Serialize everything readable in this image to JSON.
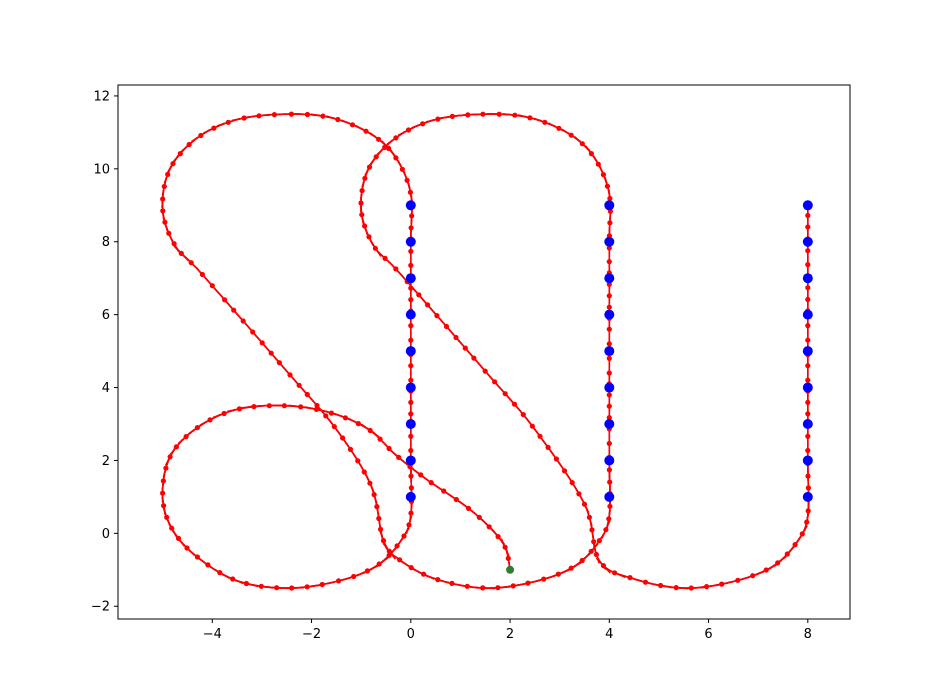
{
  "chart_data": {
    "type": "line",
    "title": "",
    "xlabel": "",
    "ylabel": "",
    "xlim": [
      -5.9,
      8.85
    ],
    "ylim": [
      -2.35,
      12.3
    ],
    "xticks": [
      -4,
      -2,
      0,
      2,
      4,
      6,
      8
    ],
    "yticks": [
      -2,
      0,
      2,
      4,
      6,
      8,
      10,
      12
    ],
    "xtick_labels": [
      "−4",
      "−2",
      "0",
      "2",
      "4",
      "6",
      "8"
    ],
    "ytick_labels": [
      "−2",
      "0",
      "2",
      "4",
      "6",
      "8",
      "10",
      "12"
    ],
    "grid": false,
    "legend": "none",
    "colors": {
      "path": "#0000ff",
      "pose": "#ff0000",
      "waypoint": "#0000ff",
      "start": "#2e7d32"
    },
    "waypoints": [
      {
        "x": 0,
        "y": 1
      },
      {
        "x": 0,
        "y": 2
      },
      {
        "x": 0,
        "y": 3
      },
      {
        "x": 0,
        "y": 4
      },
      {
        "x": 0,
        "y": 5
      },
      {
        "x": 0,
        "y": 6
      },
      {
        "x": 0,
        "y": 7
      },
      {
        "x": 0,
        "y": 8
      },
      {
        "x": 0,
        "y": 9
      },
      {
        "x": 4,
        "y": 1
      },
      {
        "x": 4,
        "y": 2
      },
      {
        "x": 4,
        "y": 3
      },
      {
        "x": 4,
        "y": 4
      },
      {
        "x": 4,
        "y": 5
      },
      {
        "x": 4,
        "y": 6
      },
      {
        "x": 4,
        "y": 7
      },
      {
        "x": 4,
        "y": 8
      },
      {
        "x": 4,
        "y": 9
      },
      {
        "x": 8,
        "y": 1
      },
      {
        "x": 8,
        "y": 2
      },
      {
        "x": 8,
        "y": 3
      },
      {
        "x": 8,
        "y": 4
      },
      {
        "x": 8,
        "y": 5
      },
      {
        "x": 8,
        "y": 6
      },
      {
        "x": 8,
        "y": 7
      },
      {
        "x": 8,
        "y": 8
      },
      {
        "x": 8,
        "y": 9
      }
    ],
    "start_point": {
      "x": 2,
      "y": -1
    },
    "path": [
      {
        "x": 2.0,
        "y": -1.0
      },
      {
        "x": 1.9,
        "y": -0.38
      },
      {
        "x": 1.6,
        "y": 0.15
      },
      {
        "x": 1.1,
        "y": 0.75
      },
      {
        "x": 0.3,
        "y": 1.5
      },
      {
        "x": -0.3,
        "y": 2.15
      },
      {
        "x": -0.85,
        "y": 2.85
      },
      {
        "x": -1.6,
        "y": 3.3
      },
      {
        "x": -2.5,
        "y": 3.5
      },
      {
        "x": -3.5,
        "y": 3.4
      },
      {
        "x": -4.3,
        "y": 2.9
      },
      {
        "x": -4.85,
        "y": 2.1
      },
      {
        "x": -5.0,
        "y": 1.0
      },
      {
        "x": -4.8,
        "y": 0.1
      },
      {
        "x": -4.3,
        "y": -0.65
      },
      {
        "x": -3.5,
        "y": -1.3
      },
      {
        "x": -2.5,
        "y": -1.5
      },
      {
        "x": -1.5,
        "y": -1.32
      },
      {
        "x": -0.7,
        "y": -0.9
      },
      {
        "x": -0.2,
        "y": -0.2
      },
      {
        "x": 0.0,
        "y": 0.5
      },
      {
        "x": 0.0,
        "y": 2.0
      },
      {
        "x": 0.0,
        "y": 4.0
      },
      {
        "x": 0.0,
        "y": 6.0
      },
      {
        "x": 0.0,
        "y": 8.0
      },
      {
        "x": 0.0,
        "y": 9.3
      },
      {
        "x": -0.3,
        "y": 10.3
      },
      {
        "x": -0.8,
        "y": 10.95
      },
      {
        "x": -1.6,
        "y": 11.4
      },
      {
        "x": -2.5,
        "y": 11.5
      },
      {
        "x": -3.5,
        "y": 11.35
      },
      {
        "x": -4.3,
        "y": 10.85
      },
      {
        "x": -4.85,
        "y": 10.0
      },
      {
        "x": -5.0,
        "y": 8.9
      },
      {
        "x": -4.75,
        "y": 7.9
      },
      {
        "x": -4.2,
        "y": 7.1
      },
      {
        "x": -2.5,
        "y": 4.45
      },
      {
        "x": -1.5,
        "y": 2.85
      },
      {
        "x": -0.8,
        "y": 1.3
      },
      {
        "x": -0.55,
        "y": -0.2
      },
      {
        "x": -0.2,
        "y": -0.75
      },
      {
        "x": 0.5,
        "y": -1.25
      },
      {
        "x": 1.5,
        "y": -1.5
      },
      {
        "x": 2.5,
        "y": -1.32
      },
      {
        "x": 3.3,
        "y": -0.9
      },
      {
        "x": 3.8,
        "y": -0.2
      },
      {
        "x": 4.0,
        "y": 0.5
      },
      {
        "x": 4.0,
        "y": 2.0
      },
      {
        "x": 4.0,
        "y": 4.0
      },
      {
        "x": 4.0,
        "y": 6.0
      },
      {
        "x": 4.0,
        "y": 8.0
      },
      {
        "x": 4.0,
        "y": 9.3
      },
      {
        "x": 3.7,
        "y": 10.3
      },
      {
        "x": 3.2,
        "y": 10.95
      },
      {
        "x": 2.4,
        "y": 11.4
      },
      {
        "x": 1.5,
        "y": 11.5
      },
      {
        "x": 0.5,
        "y": 11.35
      },
      {
        "x": -0.3,
        "y": 10.85
      },
      {
        "x": -0.85,
        "y": 10.0
      },
      {
        "x": -1.0,
        "y": 8.9
      },
      {
        "x": -0.75,
        "y": 7.9
      },
      {
        "x": -0.2,
        "y": 7.1
      },
      {
        "x": 1.5,
        "y": 4.45
      },
      {
        "x": 2.5,
        "y": 2.85
      },
      {
        "x": 3.5,
        "y": 0.8
      },
      {
        "x": 3.8,
        "y": -0.75
      },
      {
        "x": 4.5,
        "y": -1.25
      },
      {
        "x": 5.5,
        "y": -1.5
      },
      {
        "x": 6.5,
        "y": -1.32
      },
      {
        "x": 7.3,
        "y": -0.9
      },
      {
        "x": 7.8,
        "y": -0.2
      },
      {
        "x": 8.0,
        "y": 0.5
      },
      {
        "x": 8.0,
        "y": 2.0
      },
      {
        "x": 8.0,
        "y": 4.0
      },
      {
        "x": 8.0,
        "y": 6.0
      },
      {
        "x": 8.0,
        "y": 8.0
      },
      {
        "x": 8.0,
        "y": 9.0
      }
    ],
    "pose_spacing": 0.3,
    "pose_tick_length": 0.5
  }
}
